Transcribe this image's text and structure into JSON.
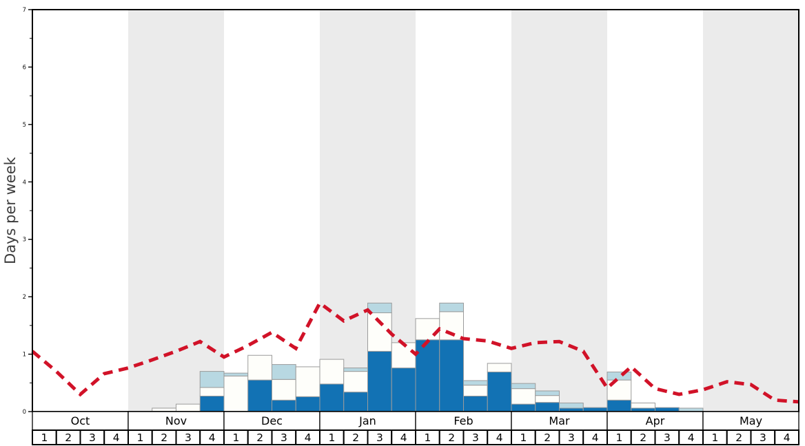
{
  "chart_data": {
    "type": "bar",
    "subtype": "stacked-bars-with-dashed-line",
    "title": "",
    "ylabel": "Days per week",
    "ylim": [
      0,
      7
    ],
    "yticks": [
      0,
      1,
      2,
      3,
      4,
      5,
      6,
      7
    ],
    "minor_tick_step": 0.5,
    "months": [
      "Oct",
      "Nov",
      "Dec",
      "Jan",
      "Feb",
      "Mar",
      "Apr",
      "May"
    ],
    "shaded_months": [
      "Nov",
      "Jan",
      "Mar",
      "May"
    ],
    "week_labels": [
      "1",
      "2",
      "3",
      "4"
    ],
    "weeks_total": 32,
    "series": [
      {
        "name": "dark-blue-days",
        "color": "#1272b4",
        "values": [
          0,
          0,
          0,
          0,
          0,
          0,
          0,
          0.27,
          0,
          0.55,
          0.2,
          0.26,
          0.48,
          0.34,
          1.05,
          0.76,
          1.25,
          1.25,
          0.27,
          0.69,
          0.13,
          0.16,
          0.06,
          0.07,
          0.2,
          0.06,
          0.07,
          0,
          0,
          0,
          0,
          0
        ]
      },
      {
        "name": "white-days",
        "color": "#fefefa",
        "values": [
          0,
          0,
          0,
          0,
          0,
          0.06,
          0.13,
          0.15,
          0.62,
          0.43,
          0.36,
          0.52,
          0.43,
          0.36,
          0.67,
          0.44,
          0.37,
          0.49,
          0.19,
          0.15,
          0.27,
          0.12,
          0,
          0,
          0.35,
          0.09,
          0,
          0,
          0,
          0,
          0,
          0
        ]
      },
      {
        "name": "light-blue-days",
        "color": "#b8d8e2",
        "values": [
          0,
          0,
          0,
          0,
          0,
          0,
          0,
          0.28,
          0.05,
          0,
          0.26,
          0,
          0,
          0.06,
          0.17,
          0,
          0,
          0.15,
          0.08,
          0,
          0.09,
          0.08,
          0.09,
          0,
          0.14,
          0,
          0,
          0.06,
          0,
          0,
          0,
          0
        ]
      }
    ],
    "line_series": {
      "name": "average-line",
      "color": "#d11228",
      "style": "dashed",
      "points_at_week_boundaries": [
        1.05,
        0.7,
        0.3,
        0.66,
        0.76,
        0.9,
        1.05,
        1.22,
        0.95,
        1.15,
        1.38,
        1.1,
        1.89,
        1.58,
        1.77,
        1.35,
        1.0,
        1.44,
        1.27,
        1.23,
        1.1,
        1.2,
        1.22,
        1.05,
        0.41,
        0.78,
        0.4,
        0.3,
        0.38,
        0.52,
        0.47,
        0.2,
        0.17
      ]
    },
    "layout": {
      "plot_left": 47,
      "plot_right": 1159,
      "plot_top": 14,
      "plot_bottom": 598,
      "month_row_bottom": 625,
      "week_row_bottom": 646,
      "band_color": "#ebebeb",
      "frame_color": "#000000",
      "bar_border_color": "#9b9b9b",
      "grid": "off",
      "legend": "none"
    }
  }
}
